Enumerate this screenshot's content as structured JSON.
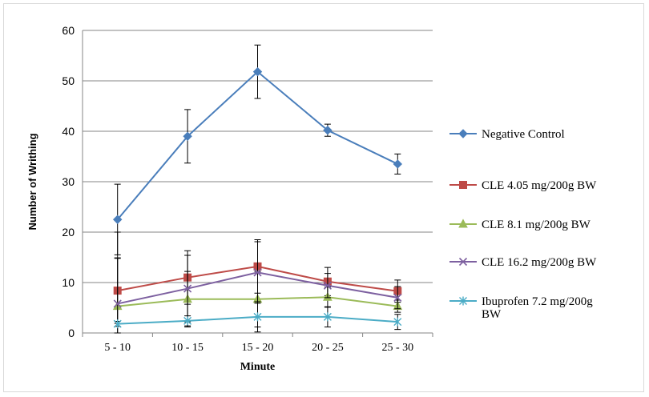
{
  "chart_data": {
    "type": "line",
    "title": "",
    "xlabel": "Minute",
    "ylabel": "Number  of Writhing",
    "categories": [
      "5 - 10",
      "10 - 15",
      "15 - 20",
      "20 - 25",
      "25 - 30"
    ],
    "ylim": [
      0,
      60
    ],
    "yticks": [
      0,
      10,
      20,
      30,
      40,
      50,
      60
    ],
    "grid": true,
    "legend_position": "right",
    "series": [
      {
        "name": "Negative Control",
        "color": "#4A7EBB",
        "marker": "diamond",
        "values": [
          22.5,
          39.0,
          51.8,
          40.2,
          33.5
        ],
        "error": [
          7.0,
          5.3,
          5.3,
          1.2,
          2.0
        ]
      },
      {
        "name": "CLE 4.05 mg/200g BW",
        "color": "#BE4B48",
        "marker": "square",
        "values": [
          8.4,
          11.0,
          13.2,
          10.2,
          8.3
        ],
        "error": [
          6.5,
          5.3,
          5.3,
          2.8,
          2.2
        ]
      },
      {
        "name": "CLE 8.1 mg/200g BW",
        "color": "#9BBB59",
        "marker": "triangle",
        "values": [
          5.3,
          6.7,
          6.7,
          7.1,
          5.3
        ],
        "error": [
          9.5,
          5.5,
          5.5,
          2.0,
          1.2
        ]
      },
      {
        "name": "CLE 16.2 mg/200g BW",
        "color": "#7D60A0",
        "marker": "x",
        "values": [
          5.8,
          8.8,
          12.0,
          9.4,
          7.0
        ],
        "error": [
          14.2,
          6.6,
          6.1,
          2.4,
          2.2
        ]
      },
      {
        "name": "Ibuprofen 7.2 mg/200g BW",
        "label_lines": [
          "Ibuprofen 7.2 mg/200g",
          "BW"
        ],
        "color": "#4BACC6",
        "marker": "star",
        "values": [
          1.8,
          2.4,
          3.2,
          3.2,
          2.2
        ],
        "error": [
          0.5,
          1.0,
          3.0,
          2.0,
          1.5
        ]
      }
    ]
  }
}
